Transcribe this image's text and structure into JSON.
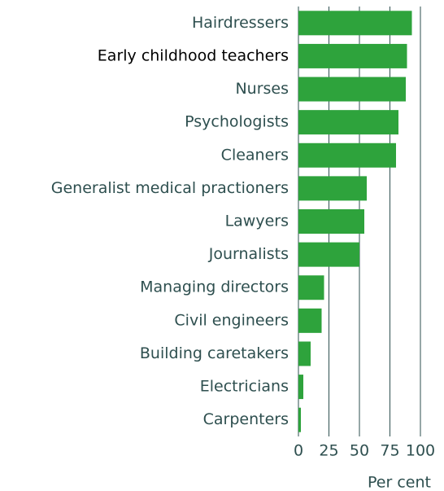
{
  "chart_data": {
    "type": "barh",
    "categories": [
      "Hairdressers",
      "Early childhood teachers",
      "Nurses",
      "Psychologists",
      "Cleaners",
      "Generalist medical practioners",
      "Lawyers",
      "Journalists",
      "Managing directors",
      "Civil engineers",
      "Building caretakers",
      "Electricians",
      "Carpenters"
    ],
    "values": [
      93,
      89,
      88,
      82,
      80,
      56,
      54,
      50,
      21,
      19,
      10,
      4,
      2
    ],
    "color": "#2ea33c",
    "label_colors": [
      "#2e4f4f",
      "#000000",
      "#2e4f4f",
      "#2e4f4f",
      "#2e4f4f",
      "#2e4f4f",
      "#2e4f4f",
      "#2e4f4f",
      "#2e4f4f",
      "#2e4f4f",
      "#2e4f4f",
      "#2e4f4f",
      "#2e4f4f"
    ],
    "xlabel": "Per cent",
    "xlim": [
      0,
      100
    ],
    "xticks": [
      0,
      25,
      50,
      75,
      100
    ],
    "grid": true
  }
}
